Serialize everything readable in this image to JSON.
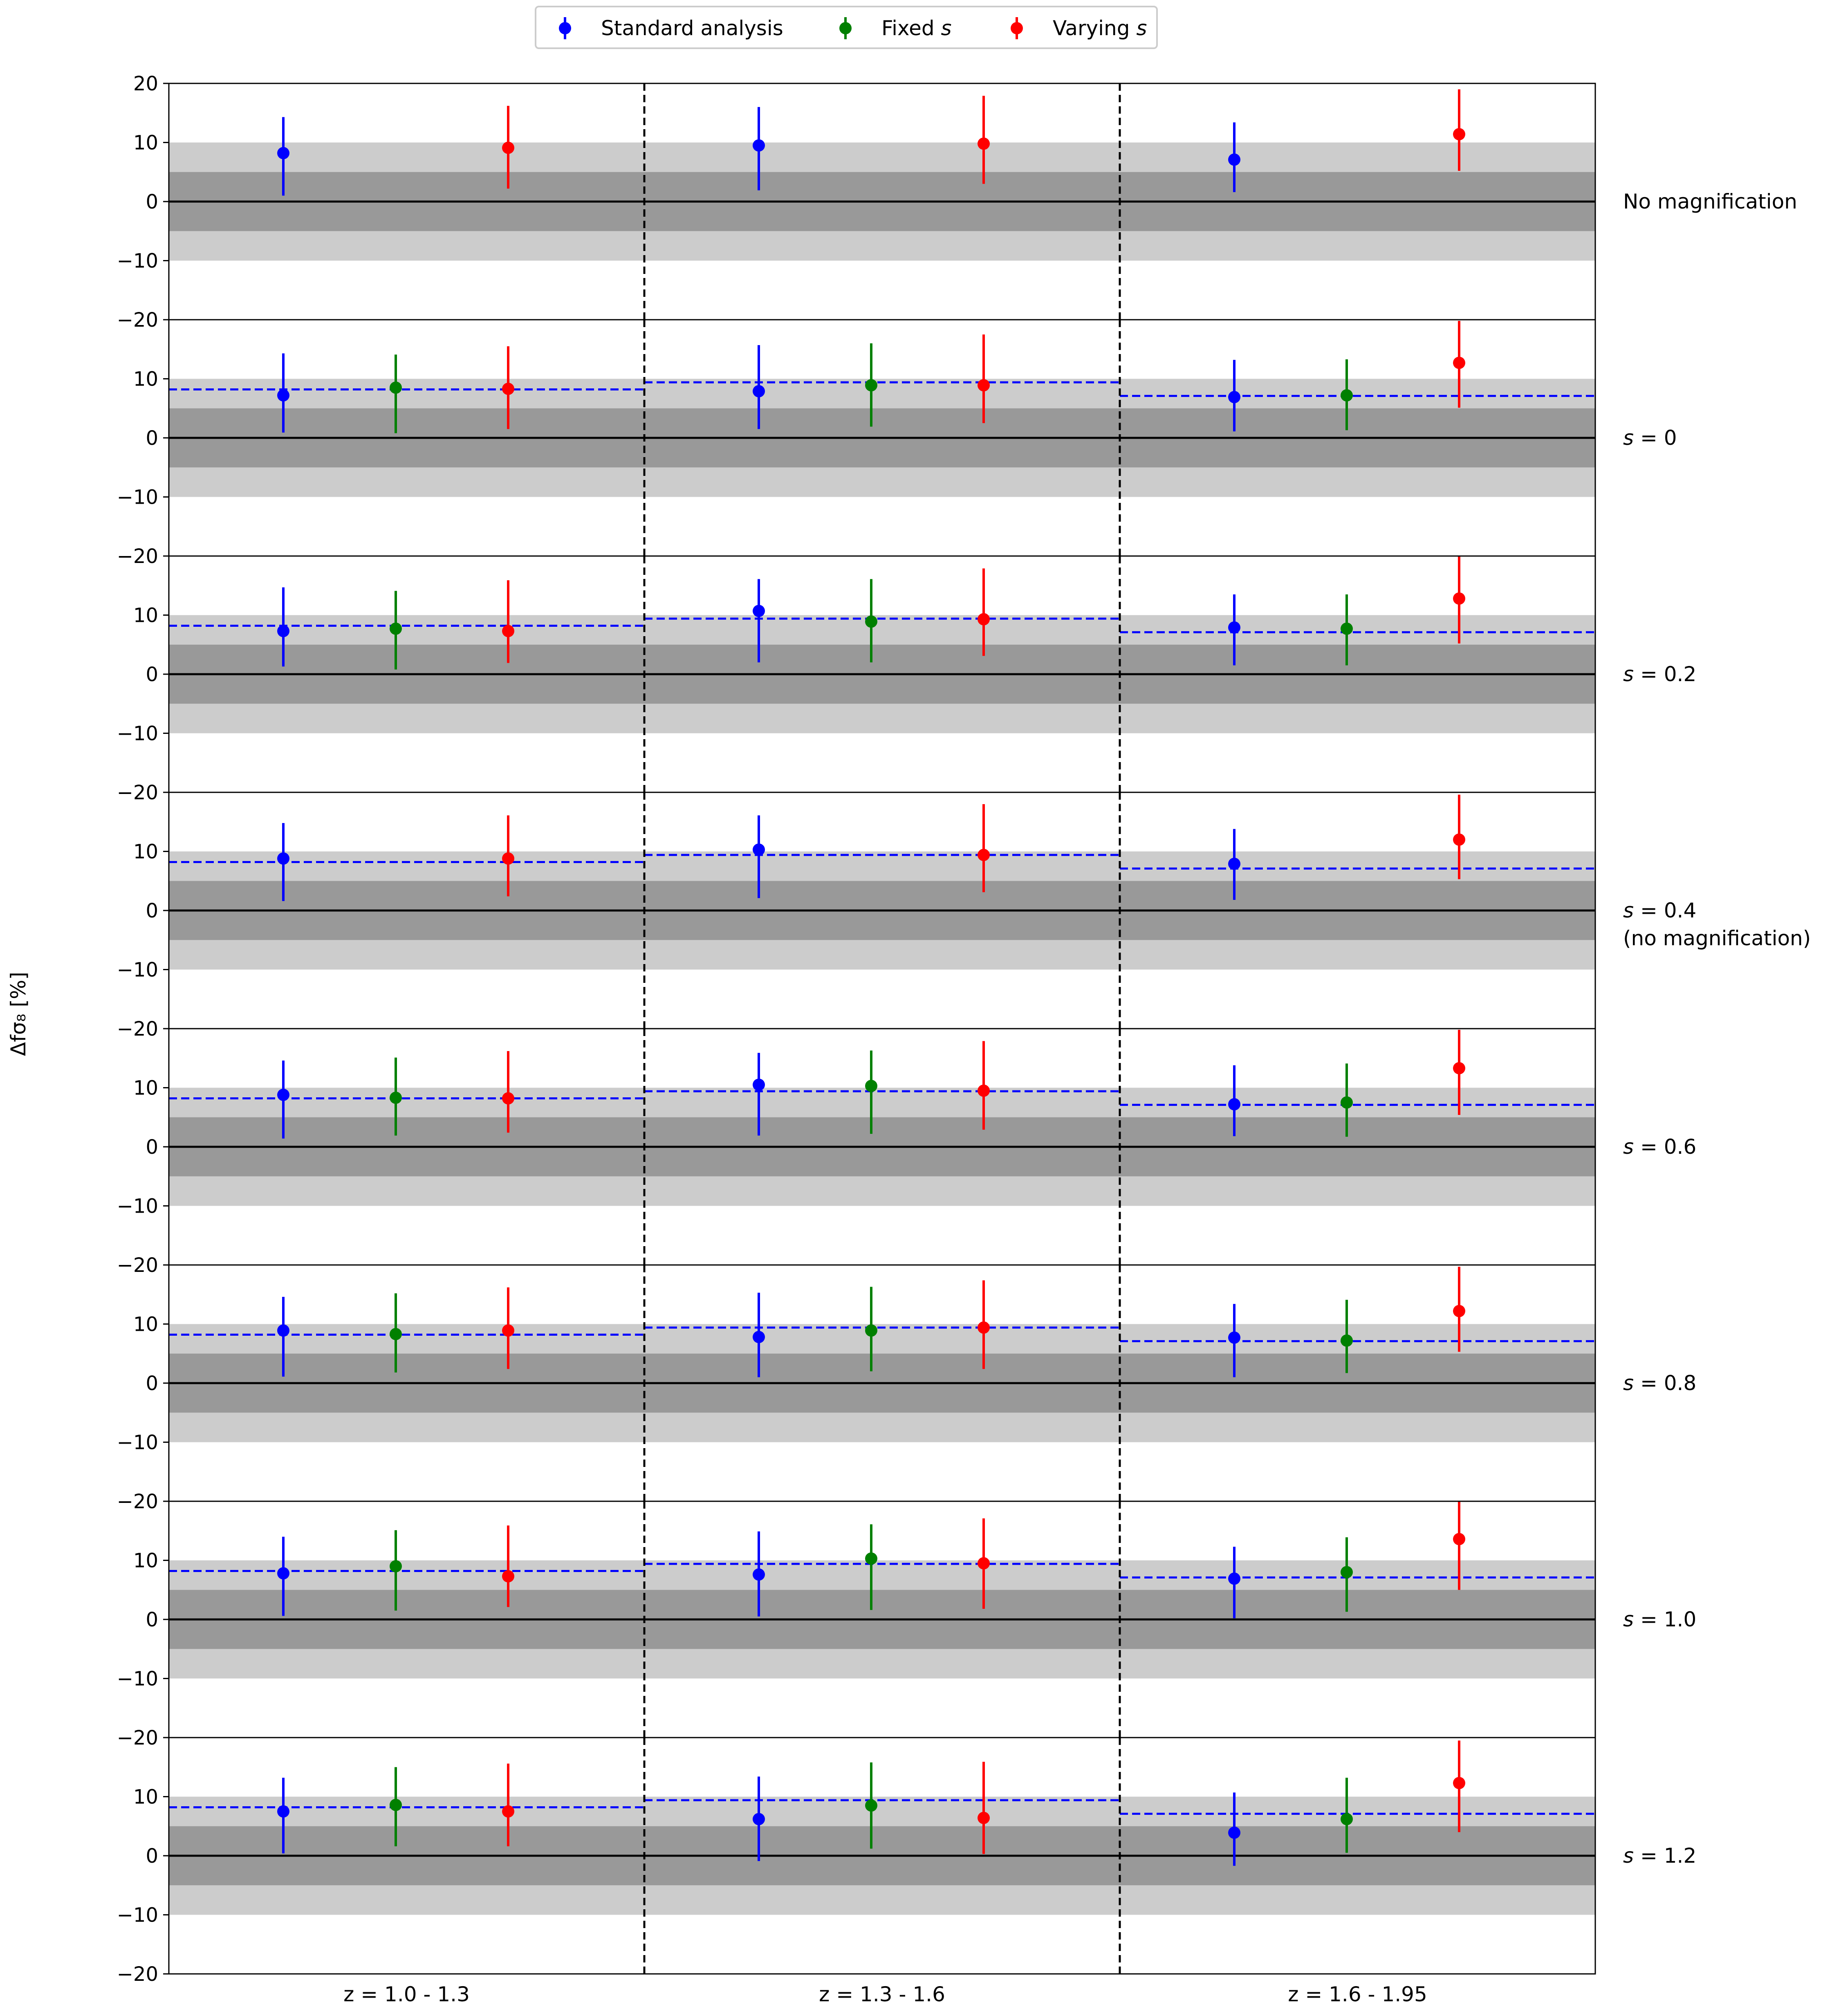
{
  "chart_data": {
    "type": "errorbar",
    "ylabel": "Δfσ₈ [%]",
    "ylim": [
      -20,
      20
    ],
    "yticks": [
      -20,
      -10,
      0,
      10,
      20
    ],
    "ytick_labels": [
      "−20",
      "−10",
      "0",
      "10",
      "20"
    ],
    "x_categories": [
      "z = 1.0 - 1.3",
      "z = 1.3 - 1.6",
      "z = 1.6 - 1.95"
    ],
    "bands": [
      {
        "range": [
          -10,
          10
        ],
        "color": "#cccccc"
      },
      {
        "range": [
          -5,
          5
        ],
        "color": "#999999"
      }
    ],
    "colors": {
      "standard": "#0000ff",
      "fixed": "#008000",
      "varying": "#ff0000"
    },
    "legend": {
      "position": "top-center",
      "entries": [
        {
          "key": "standard",
          "text": "Standard analysis"
        },
        {
          "key": "fixed",
          "pre": "Fixed ",
          "italic": "s"
        },
        {
          "key": "varying",
          "pre": "Varying ",
          "italic": "s"
        }
      ]
    },
    "reference_values": [
      8.2,
      9.4,
      7.1
    ],
    "panels": [
      {
        "label_lines": [
          {
            "text": "No magnification"
          }
        ],
        "show_reference": false,
        "series": {
          "standard": [
            [
              8.2,
              1.0,
              14.3
            ],
            [
              9.5,
              1.9,
              16.0
            ],
            [
              7.1,
              1.6,
              13.4
            ]
          ],
          "fixed": [
            null,
            null,
            null
          ],
          "varying": [
            [
              9.1,
              2.2,
              16.2
            ],
            [
              9.8,
              3.0,
              17.9
            ],
            [
              11.4,
              5.2,
              19.0
            ]
          ]
        }
      },
      {
        "label_lines": [
          {
            "pre": "",
            "italic": "s",
            "post": " = 0"
          }
        ],
        "show_reference": true,
        "series": {
          "standard": [
            [
              7.2,
              0.9,
              14.3
            ],
            [
              7.9,
              1.5,
              15.7
            ],
            [
              6.9,
              1.1,
              13.2
            ]
          ],
          "fixed": [
            [
              8.5,
              0.8,
              14.1
            ],
            [
              8.9,
              1.9,
              16.0
            ],
            [
              7.2,
              1.3,
              13.3
            ]
          ],
          "varying": [
            [
              8.3,
              1.5,
              15.5
            ],
            [
              8.9,
              2.5,
              17.5
            ],
            [
              12.7,
              5.1,
              19.8
            ]
          ]
        }
      },
      {
        "label_lines": [
          {
            "pre": "",
            "italic": "s",
            "post": " = 0.2"
          }
        ],
        "show_reference": true,
        "series": {
          "standard": [
            [
              7.3,
              1.3,
              14.7
            ],
            [
              10.7,
              2.0,
              16.1
            ],
            [
              7.9,
              1.5,
              13.5
            ]
          ],
          "fixed": [
            [
              7.7,
              0.8,
              14.1
            ],
            [
              8.9,
              2.0,
              16.1
            ],
            [
              7.7,
              1.5,
              13.5
            ]
          ],
          "varying": [
            [
              7.3,
              1.9,
              15.9
            ],
            [
              9.3,
              3.1,
              17.9
            ],
            [
              12.8,
              5.2,
              19.9
            ]
          ]
        }
      },
      {
        "label_lines": [
          {
            "pre": "",
            "italic": "s",
            "post": " = 0.4"
          },
          {
            "text": "(no magnification)"
          }
        ],
        "show_reference": true,
        "series": {
          "standard": [
            [
              8.8,
              1.6,
              14.8
            ],
            [
              10.3,
              2.1,
              16.1
            ],
            [
              7.9,
              1.8,
              13.8
            ]
          ],
          "fixed": [
            null,
            null,
            null
          ],
          "varying": [
            [
              8.8,
              2.4,
              16.1
            ],
            [
              9.4,
              3.1,
              18.0
            ],
            [
              12.0,
              5.3,
              19.6
            ]
          ]
        }
      },
      {
        "label_lines": [
          {
            "pre": "",
            "italic": "s",
            "post": " = 0.6"
          }
        ],
        "show_reference": true,
        "series": {
          "standard": [
            [
              8.8,
              1.4,
              14.6
            ],
            [
              10.5,
              1.9,
              15.9
            ],
            [
              7.2,
              1.8,
              13.8
            ]
          ],
          "fixed": [
            [
              8.3,
              1.9,
              15.1
            ],
            [
              10.3,
              2.2,
              16.3
            ],
            [
              7.5,
              1.7,
              14.1
            ]
          ],
          "varying": [
            [
              8.2,
              2.4,
              16.2
            ],
            [
              9.5,
              2.9,
              17.9
            ],
            [
              13.3,
              5.4,
              19.8
            ]
          ]
        }
      },
      {
        "label_lines": [
          {
            "pre": "",
            "italic": "s",
            "post": " = 0.8"
          }
        ],
        "show_reference": true,
        "series": {
          "standard": [
            [
              8.9,
              1.1,
              14.6
            ],
            [
              7.8,
              1.0,
              15.3
            ],
            [
              7.7,
              1.0,
              13.4
            ]
          ],
          "fixed": [
            [
              8.3,
              1.8,
              15.2
            ],
            [
              8.9,
              2.0,
              16.3
            ],
            [
              7.2,
              1.7,
              14.1
            ]
          ],
          "varying": [
            [
              8.9,
              2.4,
              16.2
            ],
            [
              9.4,
              2.4,
              17.4
            ],
            [
              12.2,
              5.3,
              19.7
            ]
          ]
        }
      },
      {
        "label_lines": [
          {
            "pre": "",
            "italic": "s",
            "post": " = 1.0"
          }
        ],
        "show_reference": true,
        "series": {
          "standard": [
            [
              7.8,
              0.6,
              14.0
            ],
            [
              7.6,
              0.5,
              14.9
            ],
            [
              6.9,
              0.2,
              12.3
            ]
          ],
          "fixed": [
            [
              9.0,
              1.5,
              15.1
            ],
            [
              10.3,
              1.6,
              16.1
            ],
            [
              8.0,
              1.3,
              13.9
            ]
          ],
          "varying": [
            [
              7.3,
              2.1,
              15.9
            ],
            [
              9.5,
              1.8,
              17.1
            ],
            [
              13.6,
              5.0,
              20.0
            ]
          ]
        }
      },
      {
        "label_lines": [
          {
            "pre": "",
            "italic": "s",
            "post": " = 1.2"
          }
        ],
        "show_reference": true,
        "series": {
          "standard": [
            [
              7.5,
              0.4,
              13.2
            ],
            [
              6.2,
              -0.9,
              13.4
            ],
            [
              3.9,
              -1.7,
              10.7
            ]
          ],
          "fixed": [
            [
              8.6,
              1.6,
              15.0
            ],
            [
              8.5,
              1.2,
              15.8
            ],
            [
              6.2,
              0.5,
              13.2
            ]
          ],
          "varying": [
            [
              7.5,
              1.6,
              15.6
            ],
            [
              6.4,
              0.3,
              15.9
            ],
            [
              12.3,
              4.0,
              19.5
            ]
          ]
        }
      }
    ]
  }
}
